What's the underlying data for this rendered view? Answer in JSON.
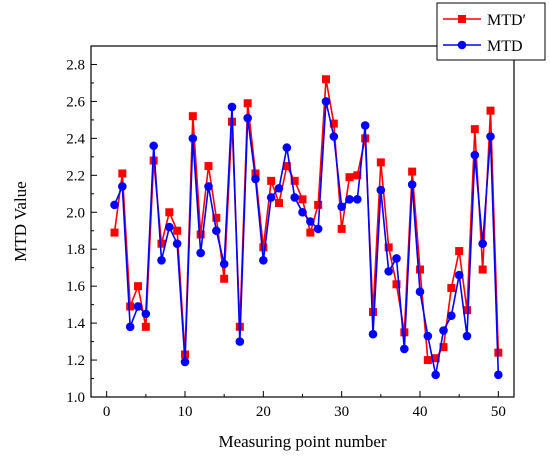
{
  "chart_data": {
    "type": "line",
    "xlabel": "Measuring point number",
    "ylabel": "MTD Value",
    "xlim": [
      -2,
      52
    ],
    "ylim": [
      1.0,
      2.9
    ],
    "xticks": [
      0,
      10,
      20,
      30,
      40,
      50
    ],
    "yticks": [
      1.0,
      1.2,
      1.4,
      1.6,
      1.8,
      2.0,
      2.2,
      2.4,
      2.6,
      2.8
    ],
    "x": [
      1,
      2,
      3,
      4,
      5,
      6,
      7,
      8,
      9,
      10,
      11,
      12,
      13,
      14,
      15,
      16,
      17,
      18,
      19,
      20,
      21,
      22,
      23,
      24,
      25,
      26,
      27,
      28,
      29,
      30,
      31,
      32,
      33,
      34,
      35,
      36,
      37,
      38,
      39,
      40,
      41,
      42,
      43,
      44,
      45,
      46,
      47,
      48,
      49,
      50
    ],
    "legend_position": "top-right",
    "grid": false,
    "series": [
      {
        "name": "MTD′",
        "color": "#ff0000",
        "marker": "square",
        "values": [
          1.89,
          2.21,
          1.49,
          1.6,
          1.38,
          2.28,
          1.83,
          2.0,
          1.9,
          1.23,
          2.52,
          1.88,
          2.25,
          1.97,
          1.64,
          2.49,
          1.38,
          2.59,
          2.21,
          1.81,
          2.17,
          2.05,
          2.25,
          2.17,
          2.07,
          1.89,
          2.04,
          2.72,
          2.48,
          1.91,
          2.19,
          2.2,
          2.4,
          1.46,
          2.27,
          1.81,
          1.61,
          1.35,
          2.22,
          1.69,
          1.2,
          1.21,
          1.27,
          1.59,
          1.79,
          1.47,
          2.45,
          1.69,
          2.55,
          1.24
        ]
      },
      {
        "name": "MTD",
        "color": "#0000ff",
        "marker": "circle",
        "values": [
          2.04,
          2.14,
          1.38,
          1.49,
          1.45,
          2.36,
          1.74,
          1.92,
          1.83,
          1.19,
          2.4,
          1.78,
          2.14,
          1.9,
          1.72,
          2.57,
          1.3,
          2.51,
          2.18,
          1.74,
          2.08,
          2.13,
          2.35,
          2.08,
          2.0,
          1.95,
          1.91,
          2.6,
          2.41,
          2.03,
          2.07,
          2.07,
          2.47,
          1.34,
          2.12,
          1.68,
          1.75,
          1.26,
          2.15,
          1.57,
          1.33,
          1.12,
          1.36,
          1.44,
          1.66,
          1.33,
          2.31,
          1.83,
          2.41,
          1.12
        ]
      }
    ]
  }
}
